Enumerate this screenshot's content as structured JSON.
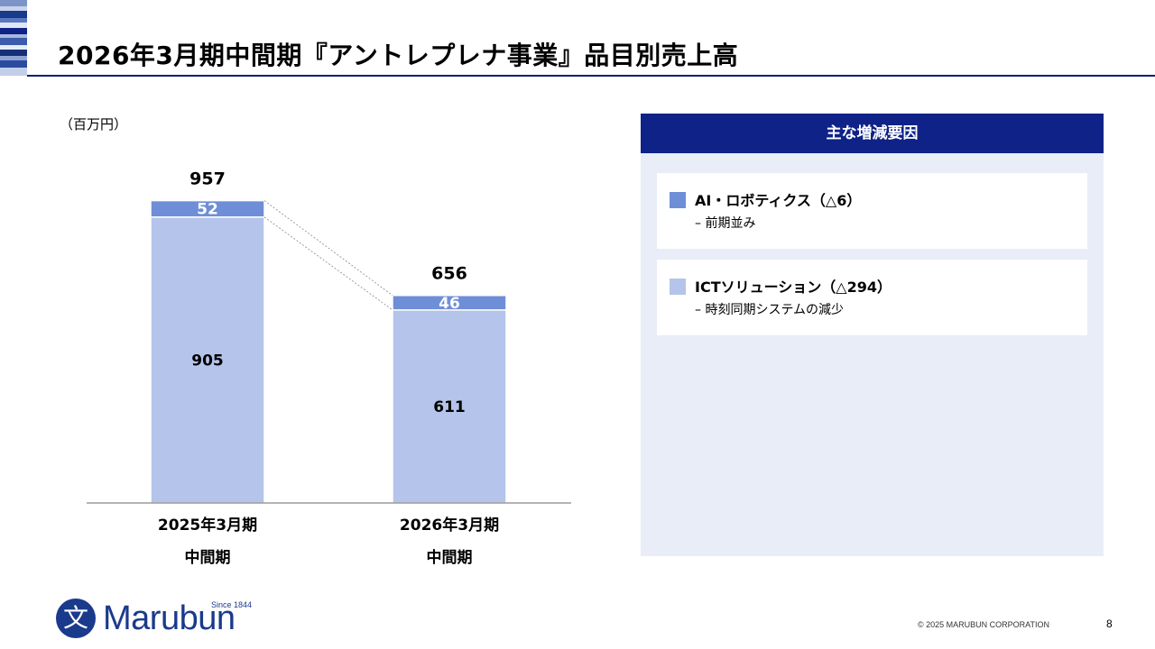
{
  "header": {
    "title": "2026年3月期中間期『アントレプレナ事業』品目別売上高"
  },
  "unit_label": "（百万円）",
  "chart_data": {
    "type": "bar",
    "stacked": true,
    "categories": [
      {
        "line1": "2025年3月期",
        "line2": "中間期"
      },
      {
        "line1": "2026年3月期",
        "line2": "中間期"
      }
    ],
    "series": [
      {
        "name": "ICTソリューション",
        "values": [
          905,
          611
        ],
        "color": "#b4c4ea",
        "label_color": "#000000"
      },
      {
        "name": "AI・ロボティクス",
        "values": [
          52,
          46
        ],
        "color": "#6f8ed8",
        "label_color": "#ffffff"
      }
    ],
    "totals": [
      957,
      656
    ],
    "ymin": 0,
    "ymax": 1050,
    "connector_lines": true
  },
  "panel": {
    "title": "主な増減要因",
    "items": [
      {
        "title": "AI・ロボティクス（△6）",
        "note": "– 前期並み",
        "color": "#6f8ed8"
      },
      {
        "title": "ICTソリューション（△294）",
        "note": "– 時刻同期システムの減少",
        "color": "#b4c4ea"
      }
    ]
  },
  "logo": {
    "text": "Marubun",
    "since": "Since 1844",
    "mark": "文"
  },
  "footer": {
    "copyright": "© 2025 MARUBUN CORPORATION",
    "page": "8"
  }
}
